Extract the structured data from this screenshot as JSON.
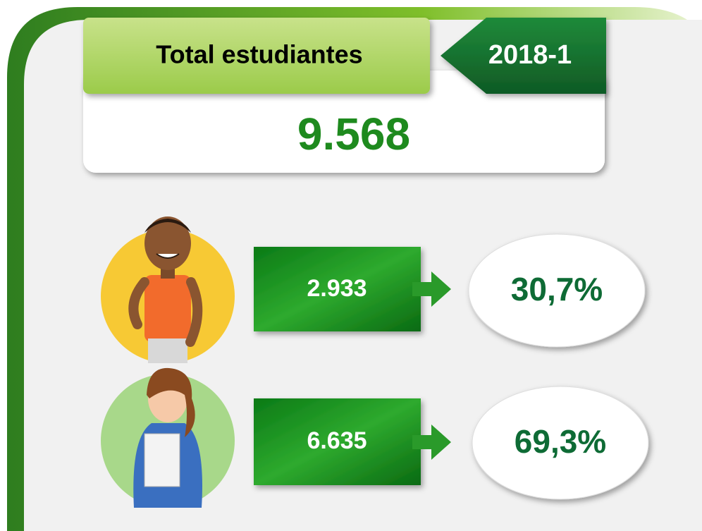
{
  "header": {
    "title": "Total estudiantes",
    "period": "2018-1"
  },
  "total": "9.568",
  "groups": [
    {
      "count": "2.933",
      "percent": "30,7%"
    },
    {
      "count": "6.635",
      "percent": "69,3%"
    }
  ]
}
